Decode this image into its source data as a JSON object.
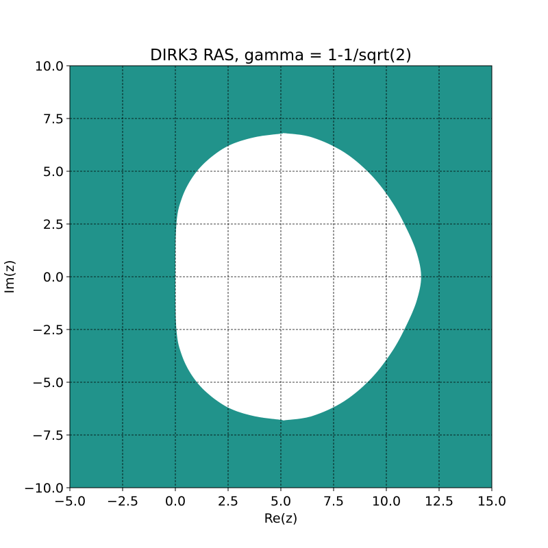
{
  "chart_data": {
    "type": "heatmap",
    "title": "DIRK3 RAS, gamma = 1-1/sqrt(2)",
    "xlabel": "Re(z)",
    "ylabel": "Im(z)",
    "xlim": [
      -5,
      15
    ],
    "ylim": [
      -10,
      10
    ],
    "xticks": [
      -5.0,
      -2.5,
      0.0,
      2.5,
      5.0,
      7.5,
      10.0,
      12.5,
      15.0
    ],
    "yticks": [
      -10.0,
      -7.5,
      -5.0,
      -2.5,
      0.0,
      2.5,
      5.0,
      7.5,
      10.0
    ],
    "xtick_labels": [
      "−5.0",
      "−2.5",
      "0.0",
      "2.5",
      "5.0",
      "7.5",
      "10.0",
      "12.5",
      "15.0"
    ],
    "ytick_labels": [
      "−10.0",
      "−7.5",
      "−5.0",
      "−2.5",
      "0.0",
      "2.5",
      "5.0",
      "7.5",
      "10.0"
    ],
    "grid": true,
    "stable_region_color": "#21938b",
    "unstable_region_color": "#ffffff",
    "unstable_region_boundary": {
      "x": [
        0.0,
        0.05,
        0.3,
        0.8,
        1.5,
        2.5,
        3.7,
        5.0,
        5.2,
        6.5,
        8.0,
        9.3,
        10.3,
        11.0,
        11.45,
        11.65,
        11.45,
        11.0,
        10.3,
        9.3,
        8.0,
        6.5,
        5.2,
        5.0,
        3.7,
        2.5,
        1.5,
        0.8,
        0.3,
        0.05,
        0.0
      ],
      "y": [
        0.0,
        2.5,
        3.7,
        4.7,
        5.5,
        6.2,
        6.6,
        6.78,
        6.8,
        6.6,
        5.9,
        4.8,
        3.5,
        2.2,
        1.1,
        0.0,
        -1.1,
        -2.2,
        -3.5,
        -4.8,
        -5.9,
        -6.6,
        -6.8,
        -6.78,
        -6.6,
        -6.2,
        -5.5,
        -4.7,
        -3.7,
        -2.5,
        0.0
      ]
    }
  }
}
